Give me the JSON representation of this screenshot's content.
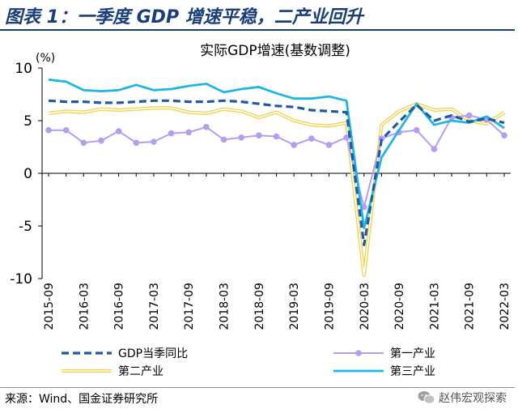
{
  "header": {
    "title": "图表 1：一季度 GDP 增速平稳，二产业回升"
  },
  "footer": {
    "source": "来源：Wind、国金证券研究所",
    "watermark": "赵伟宏观探索"
  },
  "icons": {
    "watermark": "wechat-logo-icon"
  },
  "colors": {
    "title_blue": "#1a3e7a",
    "gdp": "#1f5aa6",
    "primary": "#b49ef0",
    "secondary": "#f2d24a",
    "tertiary": "#20b6e4"
  },
  "chart_data": {
    "type": "line",
    "title": "实际GDP增速(基数调整)",
    "ylabel": "(%)",
    "ylim": [
      -10,
      10
    ],
    "yticks": [
      10,
      5,
      0,
      -5,
      -10
    ],
    "tick_labels": [
      "2015-09",
      "2016-03",
      "2016-09",
      "2017-03",
      "2017-09",
      "2018-03",
      "2018-09",
      "2019-03",
      "2019-09",
      "2020-03",
      "2020-09",
      "2021-03",
      "2021-09",
      "2022-03"
    ],
    "x": [
      "2015-09",
      "2015-12",
      "2016-03",
      "2016-06",
      "2016-09",
      "2016-12",
      "2017-03",
      "2017-06",
      "2017-09",
      "2017-12",
      "2018-03",
      "2018-06",
      "2018-09",
      "2018-12",
      "2019-03",
      "2019-06",
      "2019-09",
      "2019-12",
      "2020-03",
      "2020-06",
      "2020-09",
      "2020-12",
      "2021-03",
      "2021-06",
      "2021-09",
      "2021-12",
      "2022-03"
    ],
    "legend_position": "bottom",
    "series": [
      {
        "name": "GDP当季同比",
        "style": "dashed",
        "color": "#1f5aa6",
        "values": [
          6.9,
          6.8,
          6.8,
          6.7,
          6.7,
          6.8,
          6.9,
          6.9,
          6.8,
          6.8,
          6.9,
          6.8,
          6.6,
          6.4,
          6.3,
          6.0,
          5.9,
          5.8,
          -6.8,
          3.2,
          4.9,
          6.5,
          5.0,
          5.5,
          4.9,
          5.2,
          4.8
        ]
      },
      {
        "name": "第一产业",
        "style": "markers",
        "color": "#b49ef0",
        "values": [
          4.1,
          4.1,
          2.9,
          3.1,
          4.0,
          2.9,
          3.0,
          3.8,
          3.9,
          4.4,
          3.2,
          3.4,
          3.6,
          3.5,
          2.7,
          3.3,
          2.7,
          3.4,
          -3.2,
          3.3,
          3.9,
          4.1,
          2.3,
          5.3,
          5.5,
          5.1,
          3.6
        ]
      },
      {
        "name": "第二产业",
        "style": "double",
        "color": "#f2d24a",
        "values": [
          5.7,
          5.9,
          5.8,
          6.1,
          6.0,
          6.1,
          6.2,
          6.2,
          5.8,
          5.7,
          6.1,
          5.9,
          5.3,
          5.8,
          5.0,
          4.6,
          4.5,
          4.8,
          -9.7,
          4.6,
          5.9,
          6.6,
          6.0,
          6.1,
          5.0,
          4.7,
          5.8
        ]
      },
      {
        "name": "第三产业",
        "style": "solid",
        "color": "#20b6e4",
        "values": [
          8.9,
          8.7,
          7.9,
          7.8,
          7.9,
          8.4,
          7.9,
          8.0,
          8.3,
          8.5,
          7.7,
          8.0,
          8.2,
          7.6,
          7.1,
          7.1,
          7.3,
          6.9,
          -5.2,
          1.5,
          4.1,
          6.6,
          4.6,
          5.0,
          4.8,
          5.4,
          4.3
        ]
      }
    ]
  }
}
